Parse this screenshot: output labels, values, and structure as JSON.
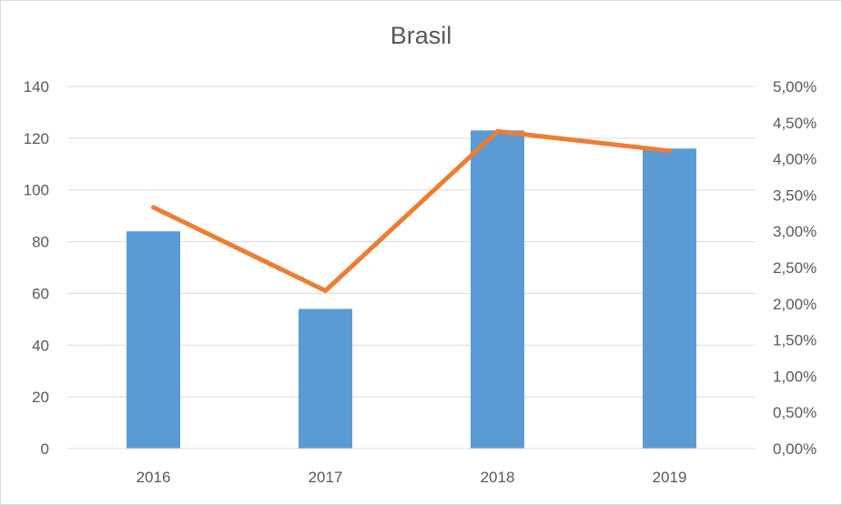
{
  "chart_data": {
    "type": "bar",
    "title": "Brasil",
    "categories": [
      "2016",
      "2017",
      "2018",
      "2019"
    ],
    "series": [
      {
        "type": "bar",
        "axis": "left",
        "color": "#5b9bd5",
        "values": [
          84,
          54,
          123,
          116
        ]
      },
      {
        "type": "line",
        "axis": "right",
        "color": "#ed7d31",
        "values": [
          0.0333,
          0.0218,
          0.0438,
          0.0411
        ]
      }
    ],
    "y_left": {
      "ylim": [
        0,
        140
      ],
      "ticks": [
        "0",
        "20",
        "40",
        "60",
        "80",
        "100",
        "120",
        "140"
      ]
    },
    "y_right": {
      "ylim": [
        0,
        0.05
      ],
      "ticks": [
        "0,00%",
        "0,50%",
        "1,00%",
        "1,50%",
        "2,00%",
        "2,50%",
        "3,00%",
        "3,50%",
        "4,00%",
        "4,50%",
        "5,00%"
      ]
    },
    "grid": true,
    "legend": "none"
  }
}
